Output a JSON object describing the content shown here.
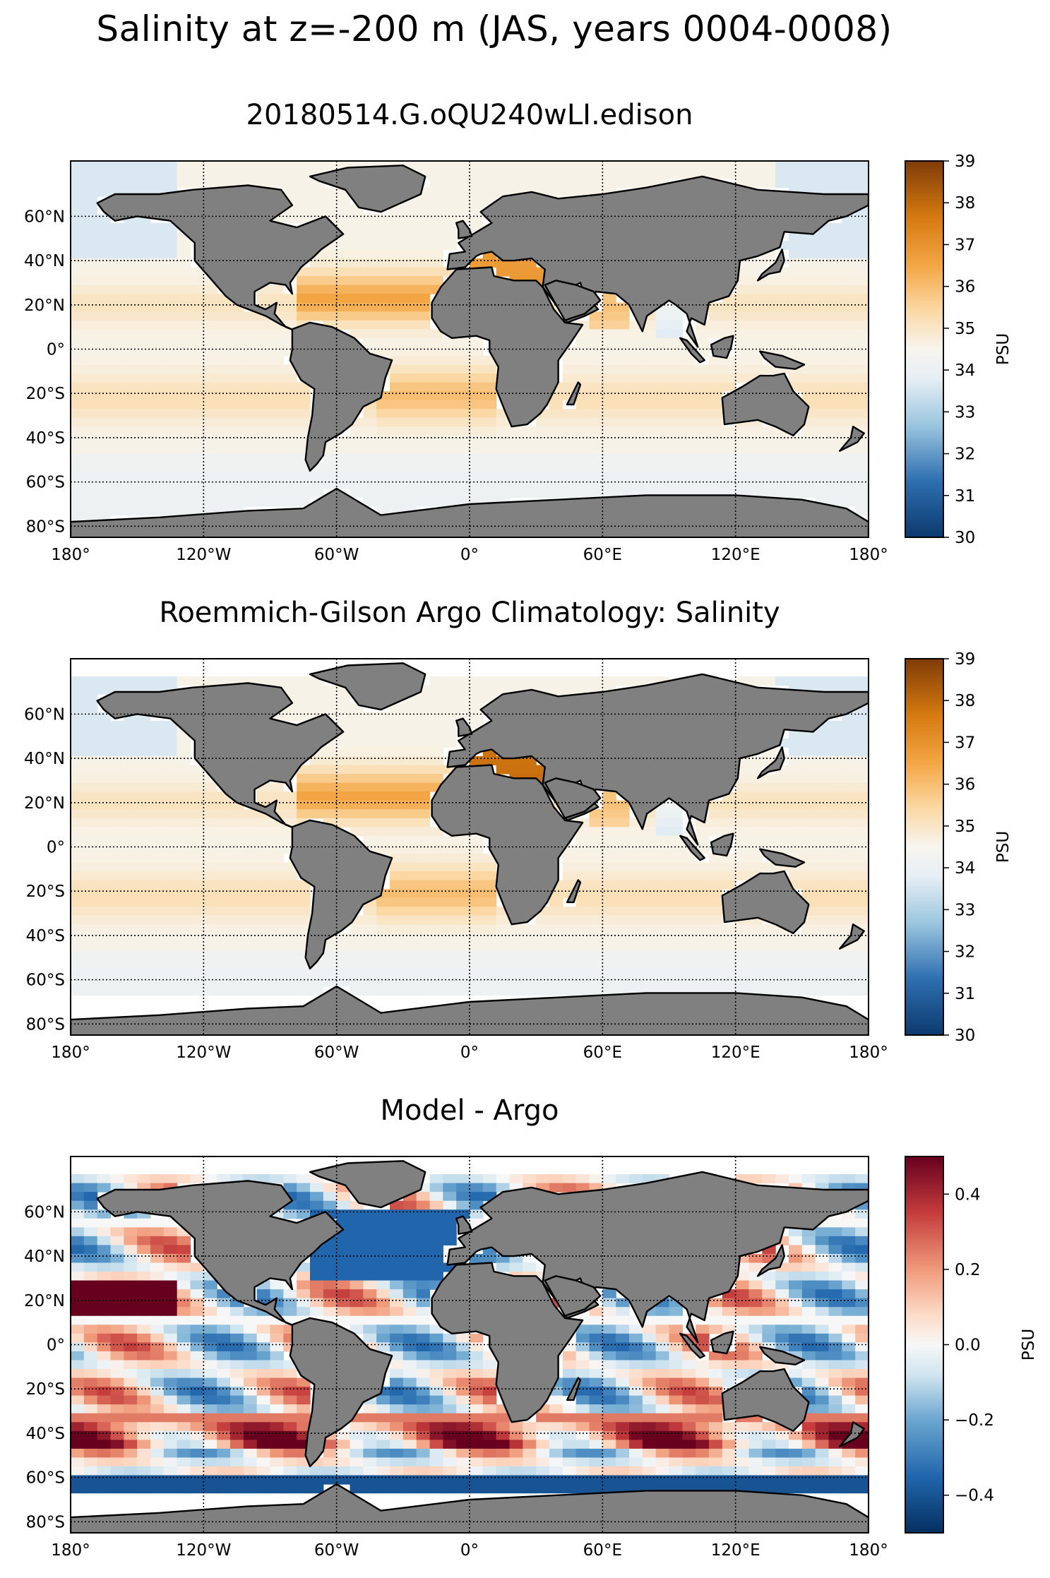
{
  "figure": {
    "title": "Salinity at z=-200 m (JAS, years 0004-0008)"
  },
  "chart_data": [
    {
      "type": "heatmap",
      "title": "20180514.G.oQU240wLI.edison",
      "x_tick_labels": [
        "180°",
        "120°W",
        "60°W",
        "0°",
        "60°E",
        "120°E",
        "180°"
      ],
      "y_tick_labels": [
        "60°N",
        "40°N",
        "20°N",
        "0°",
        "20°S",
        "40°S",
        "60°S",
        "80°S"
      ],
      "x_ticks": [
        -180,
        -120,
        -60,
        0,
        60,
        120,
        180
      ],
      "y_ticks": [
        60,
        40,
        20,
        0,
        -20,
        -40,
        -60,
        -80
      ],
      "xlim": [
        -180,
        180
      ],
      "ylim": [
        -85,
        85
      ],
      "colorbar": {
        "label": "PSU",
        "colormap": "PuOr_r",
        "range": [
          30,
          39
        ],
        "tick_values": [
          30,
          31,
          32,
          33,
          34,
          35,
          36,
          37,
          38,
          39
        ],
        "tick_labels": [
          "30",
          "31",
          "32",
          "33",
          "34",
          "35",
          "36",
          "37",
          "38",
          "39"
        ]
      },
      "land_color": "#808080",
      "grid": "dotted"
    },
    {
      "type": "heatmap",
      "title": "Roemmich-Gilson Argo Climatology: Salinity",
      "x_tick_labels": [
        "180°",
        "120°W",
        "60°W",
        "0°",
        "60°E",
        "120°E",
        "180°"
      ],
      "y_tick_labels": [
        "60°N",
        "40°N",
        "20°N",
        "0°",
        "20°S",
        "40°S",
        "60°S",
        "80°S"
      ],
      "x_ticks": [
        -180,
        -120,
        -60,
        0,
        60,
        120,
        180
      ],
      "y_ticks": [
        60,
        40,
        20,
        0,
        -20,
        -40,
        -60,
        -80
      ],
      "xlim": [
        -180,
        180
      ],
      "ylim": [
        -85,
        85
      ],
      "colorbar": {
        "label": "PSU",
        "colormap": "PuOr_r",
        "range": [
          30,
          39
        ],
        "tick_values": [
          30,
          31,
          32,
          33,
          34,
          35,
          36,
          37,
          38,
          39
        ],
        "tick_labels": [
          "30",
          "31",
          "32",
          "33",
          "34",
          "35",
          "36",
          "37",
          "38",
          "39"
        ]
      },
      "land_color": "#808080",
      "grid": "dotted"
    },
    {
      "type": "heatmap",
      "title": "Model - Argo",
      "x_tick_labels": [
        "180°",
        "120°W",
        "60°W",
        "0°",
        "60°E",
        "120°E",
        "180°"
      ],
      "y_tick_labels": [
        "60°N",
        "40°N",
        "20°N",
        "0°",
        "20°S",
        "40°S",
        "60°S",
        "80°S"
      ],
      "x_ticks": [
        -180,
        -120,
        -60,
        0,
        60,
        120,
        180
      ],
      "y_ticks": [
        60,
        40,
        20,
        0,
        -20,
        -40,
        -60,
        -80
      ],
      "xlim": [
        -180,
        180
      ],
      "ylim": [
        -85,
        85
      ],
      "colorbar": {
        "label": "PSU",
        "colormap": "RdBu_r",
        "range": [
          -0.5,
          0.5
        ],
        "tick_values": [
          -0.4,
          -0.2,
          0.0,
          0.2,
          0.4
        ],
        "tick_labels": [
          "−0.4",
          "−0.2",
          "0.0",
          "0.2",
          "0.4"
        ]
      },
      "land_color": "#808080",
      "grid": "dotted"
    }
  ]
}
